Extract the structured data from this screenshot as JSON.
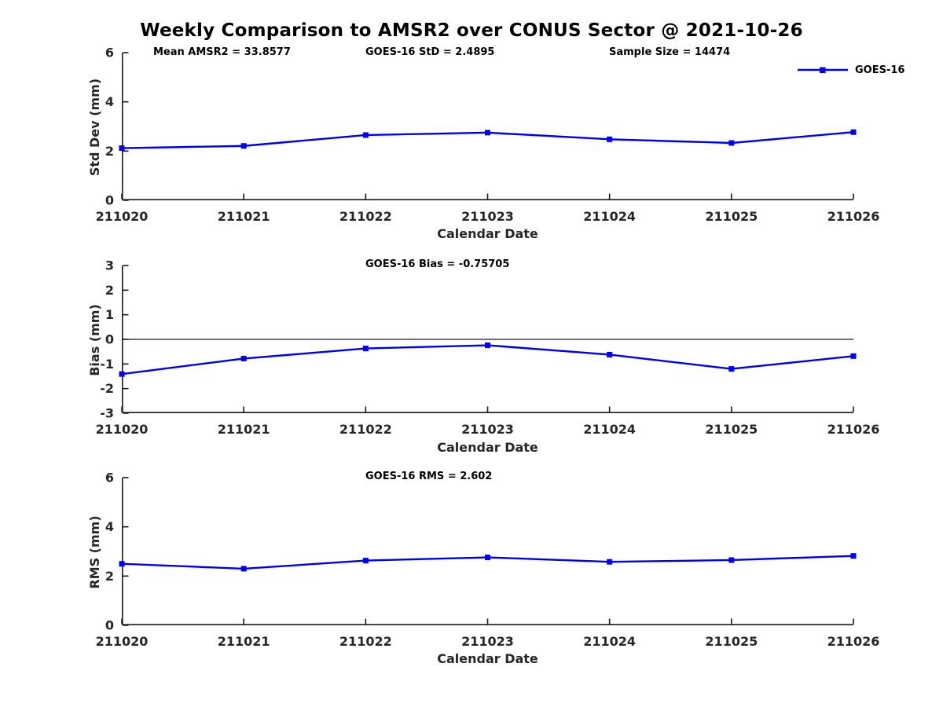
{
  "title": "Weekly Comparison to AMSR2 over CONUS Sector @ 2021-10-26",
  "colors": {
    "series": "#0000EE",
    "axis": "#1a1a1a",
    "tick_text": "#262626"
  },
  "legend": {
    "label": "GOES-16",
    "icon": "blue-line-with-square-marker"
  },
  "annotations": {
    "mean_amsr2": "Mean AMSR2 = 33.8577",
    "goes16_std": "GOES-16 StD = 2.4895",
    "sample_size": "Sample Size = 14474",
    "goes16_bias": "GOES-16 Bias  = -0.75705",
    "goes16_rms": "GOES-16 RMS = 2.602"
  },
  "chart_data": [
    {
      "type": "line",
      "title": "",
      "categories": [
        "211020",
        "211021",
        "211022",
        "211023",
        "211024",
        "211025",
        "211026"
      ],
      "series": [
        {
          "name": "GOES-16",
          "values": [
            2.12,
            2.21,
            2.65,
            2.75,
            2.48,
            2.33,
            2.77
          ]
        }
      ],
      "xlabel": "Calendar Date",
      "ylabel": "Std Dev (mm)",
      "ylim": [
        0,
        6
      ],
      "yticks": [
        0,
        2,
        4,
        6
      ],
      "zero_line": false,
      "grid": false,
      "legend_position": "top-right",
      "marker": "square"
    },
    {
      "type": "line",
      "title": "",
      "categories": [
        "211020",
        "211021",
        "211022",
        "211023",
        "211024",
        "211025",
        "211026"
      ],
      "series": [
        {
          "name": "GOES-16",
          "values": [
            -1.41,
            -0.78,
            -0.37,
            -0.24,
            -0.62,
            -1.2,
            -0.68
          ]
        }
      ],
      "xlabel": "Calendar Date",
      "ylabel": "Bias (mm)",
      "ylim": [
        -3,
        3
      ],
      "yticks": [
        -3,
        -2,
        -1,
        0,
        1,
        2,
        3
      ],
      "zero_line": true,
      "grid": false,
      "legend_position": "none",
      "marker": "square"
    },
    {
      "type": "line",
      "title": "",
      "categories": [
        "211020",
        "211021",
        "211022",
        "211023",
        "211024",
        "211025",
        "211026"
      ],
      "series": [
        {
          "name": "GOES-16",
          "values": [
            2.5,
            2.3,
            2.63,
            2.76,
            2.58,
            2.65,
            2.82
          ]
        }
      ],
      "xlabel": "Calendar Date",
      "ylabel": "RMS (mm)",
      "ylim": [
        0,
        6
      ],
      "yticks": [
        0,
        2,
        4,
        6
      ],
      "zero_line": false,
      "grid": false,
      "legend_position": "none",
      "marker": "square"
    }
  ]
}
